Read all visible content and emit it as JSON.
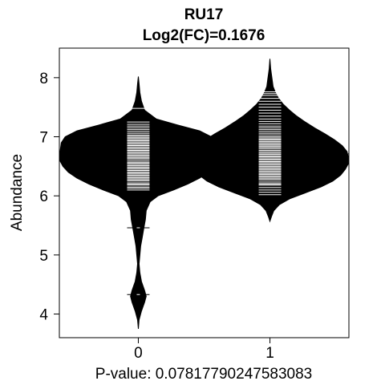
{
  "chart_data": {
    "type": "beanplot",
    "title": "RU17",
    "subtitle": "Log2(FC)=0.1676",
    "xlabel": "P-value: 0.07817790247583083",
    "ylabel": "Abundance",
    "categories": [
      "0",
      "1"
    ],
    "yticks": [
      "4",
      "5",
      "6",
      "7",
      "8"
    ],
    "xlim": [
      -0.6,
      1.6
    ],
    "ylim": [
      3.6,
      8.5
    ],
    "overall_mean": 6.71,
    "beans": [
      {
        "category": "0",
        "mean": 6.6,
        "density": [
          [
            3.75,
            0.0
          ],
          [
            3.9,
            0.01
          ],
          [
            4.05,
            0.04
          ],
          [
            4.2,
            0.08
          ],
          [
            4.3,
            0.1
          ],
          [
            4.4,
            0.08
          ],
          [
            4.55,
            0.04
          ],
          [
            4.7,
            0.02
          ],
          [
            4.85,
            0.01
          ],
          [
            5.0,
            0.02
          ],
          [
            5.15,
            0.03
          ],
          [
            5.3,
            0.05
          ],
          [
            5.45,
            0.07
          ],
          [
            5.6,
            0.09
          ],
          [
            5.75,
            0.1
          ],
          [
            5.9,
            0.15
          ],
          [
            6.0,
            0.25
          ],
          [
            6.1,
            0.45
          ],
          [
            6.2,
            0.63
          ],
          [
            6.3,
            0.78
          ],
          [
            6.4,
            0.89
          ],
          [
            6.5,
            0.96
          ],
          [
            6.6,
            1.0
          ],
          [
            6.7,
            1.0
          ],
          [
            6.8,
            0.99
          ],
          [
            6.9,
            0.98
          ],
          [
            7.0,
            0.93
          ],
          [
            7.1,
            0.78
          ],
          [
            7.2,
            0.5
          ],
          [
            7.3,
            0.23
          ],
          [
            7.45,
            0.08
          ],
          [
            7.6,
            0.04
          ],
          [
            7.75,
            0.02
          ],
          [
            7.9,
            0.01
          ],
          [
            8.02,
            0.0
          ]
        ],
        "points": [
          4.33,
          5.46,
          6.1,
          6.13,
          6.15,
          6.18,
          6.2,
          6.22,
          6.25,
          6.27,
          6.29,
          6.31,
          6.33,
          6.35,
          6.37,
          6.39,
          6.41,
          6.43,
          6.45,
          6.47,
          6.49,
          6.51,
          6.53,
          6.55,
          6.57,
          6.59,
          6.61,
          6.63,
          6.65,
          6.67,
          6.69,
          6.71,
          6.73,
          6.75,
          6.77,
          6.79,
          6.81,
          6.83,
          6.85,
          6.87,
          6.89,
          6.91,
          6.93,
          6.95,
          6.97,
          6.99,
          7.01,
          7.03,
          7.06,
          7.09,
          7.12,
          7.15,
          7.18,
          7.21,
          7.25,
          7.48
        ]
      },
      {
        "category": "1",
        "mean": 6.77,
        "density": [
          [
            5.57,
            0.0
          ],
          [
            5.65,
            0.02
          ],
          [
            5.75,
            0.05
          ],
          [
            5.85,
            0.12
          ],
          [
            5.95,
            0.25
          ],
          [
            6.05,
            0.45
          ],
          [
            6.15,
            0.65
          ],
          [
            6.25,
            0.8
          ],
          [
            6.35,
            0.9
          ],
          [
            6.45,
            0.96
          ],
          [
            6.55,
            1.0
          ],
          [
            6.65,
            1.0
          ],
          [
            6.75,
            0.98
          ],
          [
            6.85,
            0.92
          ],
          [
            6.95,
            0.82
          ],
          [
            7.05,
            0.7
          ],
          [
            7.15,
            0.57
          ],
          [
            7.25,
            0.45
          ],
          [
            7.35,
            0.34
          ],
          [
            7.45,
            0.25
          ],
          [
            7.55,
            0.17
          ],
          [
            7.65,
            0.11
          ],
          [
            7.75,
            0.07
          ],
          [
            7.85,
            0.04
          ],
          [
            7.95,
            0.03
          ],
          [
            8.05,
            0.02
          ],
          [
            8.15,
            0.01
          ],
          [
            8.32,
            0.0
          ]
        ],
        "points": [
          6.02,
          6.06,
          6.1,
          6.14,
          6.18,
          6.2,
          6.22,
          6.25,
          6.28,
          6.3,
          6.32,
          6.34,
          6.36,
          6.38,
          6.4,
          6.42,
          6.44,
          6.46,
          6.48,
          6.5,
          6.52,
          6.54,
          6.56,
          6.58,
          6.6,
          6.62,
          6.64,
          6.66,
          6.68,
          6.7,
          6.72,
          6.74,
          6.76,
          6.78,
          6.8,
          6.82,
          6.84,
          6.86,
          6.88,
          6.9,
          6.92,
          6.94,
          6.96,
          6.98,
          7.0,
          7.03,
          7.06,
          7.09,
          7.12,
          7.15,
          7.18,
          7.22,
          7.26,
          7.3,
          7.35,
          7.4,
          7.45,
          7.5,
          7.55,
          7.6,
          7.65,
          7.7,
          7.73,
          7.76
        ]
      }
    ],
    "colors": {
      "bean": "#000000",
      "line": "#ffffff",
      "background": "#ffffff"
    },
    "grid": false,
    "legend": "none"
  }
}
